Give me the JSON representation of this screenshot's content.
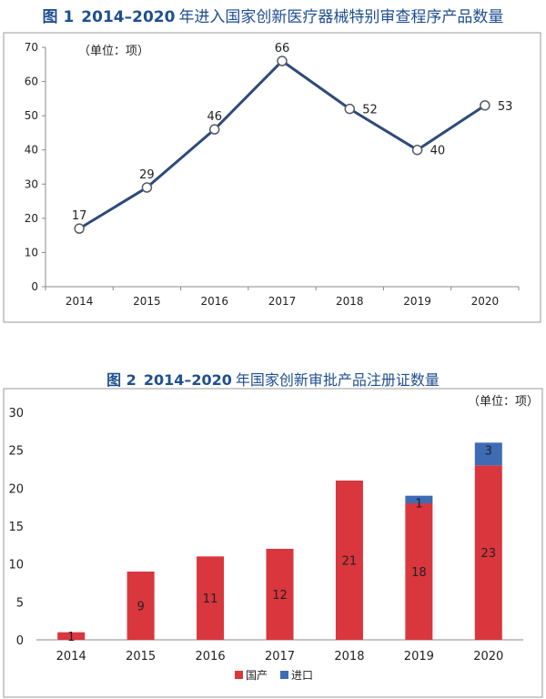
{
  "colors": {
    "title": "#1f4f8f",
    "line": "#2e4a7a",
    "marker_fill": "#ffffff",
    "domestic": "#d9363e",
    "imported": "#3d6cb5",
    "axis": "#888888"
  },
  "figure1": {
    "title": {
      "number": "图 1",
      "range": "2014–2020",
      "text": "年进入国家创新医疗器械特别审查程序产品数量"
    },
    "unit": "（单位：项）"
  },
  "figure2": {
    "title": {
      "number": "图 2",
      "range": "2014–2020",
      "text": "年国家创新审批产品注册证数量"
    },
    "unit": "（单位：项）"
  },
  "chart_data": [
    {
      "type": "line",
      "title": "",
      "xlabel": "",
      "ylabel": "",
      "x": [
        "2014",
        "2015",
        "2016",
        "2017",
        "2018",
        "2019",
        "2020"
      ],
      "values": [
        17,
        29,
        46,
        66,
        52,
        40,
        53
      ],
      "ylim": [
        0,
        70
      ],
      "yticks": [
        0,
        10,
        20,
        30,
        40,
        50,
        60,
        70
      ],
      "grid": false,
      "data_labels": true,
      "marker": "hollow-circle"
    },
    {
      "type": "bar",
      "stacked": true,
      "title": "",
      "xlabel": "",
      "ylabel": "",
      "categories": [
        "2014",
        "2015",
        "2016",
        "2017",
        "2018",
        "2019",
        "2020"
      ],
      "series": [
        {
          "name": "国产",
          "color": "#d9363e",
          "values": [
            1,
            9,
            11,
            12,
            21,
            18,
            23
          ]
        },
        {
          "name": "进口",
          "color": "#3d6cb5",
          "values": [
            0,
            0,
            0,
            0,
            0,
            1,
            3
          ]
        }
      ],
      "ylim": [
        0,
        30
      ],
      "yticks": [
        0,
        5,
        10,
        15,
        20,
        25,
        30
      ],
      "grid": false,
      "legend": "bottom",
      "data_labels": true
    }
  ]
}
